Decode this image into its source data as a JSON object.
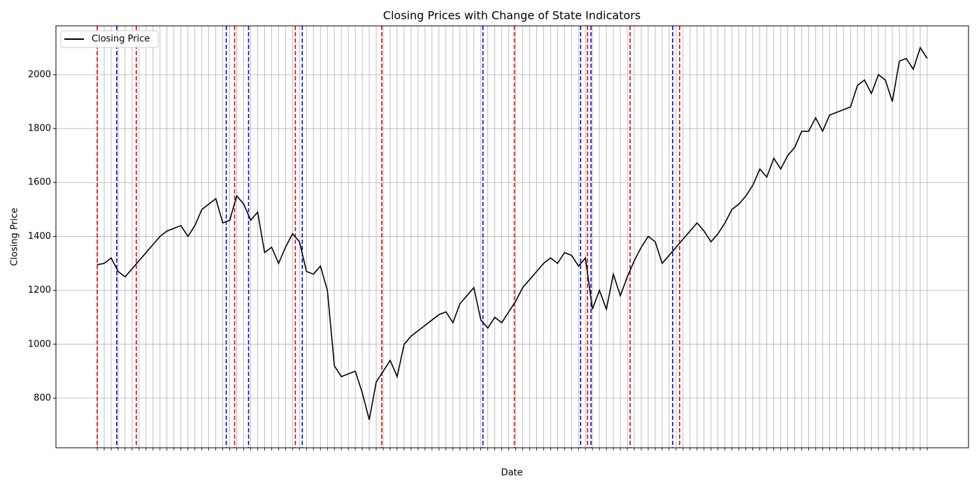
{
  "chart_data": {
    "type": "line",
    "title": "Closing Prices with Change of State Indicators",
    "xlabel": "Date",
    "ylabel": "Closing Price",
    "series": [
      {
        "name": "Closing Price",
        "color": "#000000",
        "values": [
          1295,
          1300,
          1320,
          1270,
          1250,
          1280,
          1310,
          1340,
          1370,
          1400,
          1420,
          1430,
          1440,
          1400,
          1440,
          1500,
          1520,
          1540,
          1450,
          1460,
          1550,
          1520,
          1460,
          1490,
          1340,
          1360,
          1300,
          1360,
          1410,
          1380,
          1270,
          1260,
          1290,
          1200,
          920,
          880,
          890,
          900,
          820,
          720,
          860,
          900,
          940,
          880,
          1000,
          1030,
          1050,
          1070,
          1090,
          1110,
          1120,
          1080,
          1150,
          1180,
          1210,
          1090,
          1060,
          1100,
          1080,
          1120,
          1160,
          1210,
          1240,
          1270,
          1300,
          1320,
          1300,
          1340,
          1330,
          1290,
          1320,
          1130,
          1200,
          1130,
          1260,
          1180,
          1250,
          1310,
          1360,
          1400,
          1380,
          1300,
          1330,
          1360,
          1390,
          1420,
          1450,
          1420,
          1380,
          1410,
          1450,
          1500,
          1520,
          1550,
          1590,
          1650,
          1620,
          1690,
          1650,
          1700,
          1730,
          1790,
          1790,
          1840,
          1790,
          1850,
          1860,
          1870,
          1880,
          1960,
          1980,
          1930,
          2000,
          1980,
          1900,
          2050,
          2060,
          2020,
          2100,
          2060
        ]
      }
    ],
    "state_changes": [
      {
        "at": 0,
        "color": "#e00000"
      },
      {
        "at": 2.8,
        "color": "#0000e0"
      },
      {
        "at": 5.6,
        "color": "#e00000"
      },
      {
        "at": 18.5,
        "color": "#0000e0"
      },
      {
        "at": 19.7,
        "color": "#e00000"
      },
      {
        "at": 21.7,
        "color": "#0000e0"
      },
      {
        "at": 28.4,
        "color": "#e00000"
      },
      {
        "at": 29.4,
        "color": "#0000e0"
      },
      {
        "at": 40.8,
        "color": "#e00000"
      },
      {
        "at": 55.3,
        "color": "#0000e0"
      },
      {
        "at": 59.8,
        "color": "#e00000"
      },
      {
        "at": 69.3,
        "color": "#0000e0"
      },
      {
        "at": 70.3,
        "color": "#e00000"
      },
      {
        "at": 70.8,
        "color": "#0000e0"
      },
      {
        "at": 76.4,
        "color": "#e00000"
      },
      {
        "at": 82.5,
        "color": "#0000e0"
      },
      {
        "at": 83.5,
        "color": "#e00000"
      }
    ],
    "ylim": [
      616,
      2181
    ],
    "yticks": [
      800,
      1000,
      1200,
      1400,
      1600,
      1800,
      2000
    ],
    "grid": true,
    "legend": "upper left"
  }
}
